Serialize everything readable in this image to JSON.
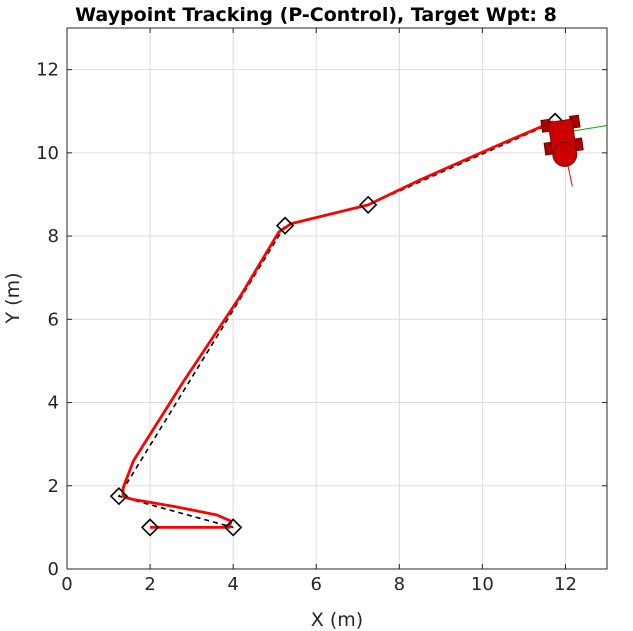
{
  "chart_data": {
    "type": "line",
    "title": "Waypoint Tracking (P-Control), Target Wpt: 8",
    "xlabel": "X (m)",
    "ylabel": "Y (m)",
    "xlim": [
      0,
      13
    ],
    "ylim": [
      0,
      13
    ],
    "xticks": [
      0,
      2,
      4,
      6,
      8,
      10,
      12
    ],
    "yticks": [
      0,
      2,
      4,
      6,
      8,
      10,
      12
    ],
    "grid": true,
    "series": [
      {
        "role": "waypoints",
        "marker": "diamond",
        "color": "#000000",
        "x": [
          2,
          4,
          1.25,
          5.25,
          7.25,
          11.75
        ],
        "y": [
          1,
          1,
          1.75,
          8.25,
          8.75,
          10.75
        ]
      },
      {
        "role": "reference path",
        "style": "dashed",
        "color": "#000000",
        "x": [
          2,
          4,
          1.25,
          5.25,
          7.25,
          11.75
        ],
        "y": [
          1,
          1,
          1.75,
          8.25,
          8.75,
          10.75
        ]
      },
      {
        "role": "robot trajectory",
        "style": "solid",
        "color": "#ff0000",
        "x": [
          2,
          3.9,
          3.95,
          3.6,
          2.6,
          1.55,
          1.35,
          1.35,
          1.6,
          2.8,
          4.2,
          5.1,
          5.4,
          7.25,
          8.5,
          10.3,
          11.7
        ],
        "y": [
          1,
          1,
          1.15,
          1.3,
          1.5,
          1.68,
          1.75,
          1.95,
          2.6,
          4.5,
          6.6,
          8.1,
          8.3,
          8.75,
          9.35,
          10.15,
          10.75
        ]
      }
    ],
    "robot": {
      "x": 11.95,
      "y": 10.2,
      "color": "#cc0000",
      "heading_color": "#ff0000",
      "lookahead_color": "#00aa00"
    }
  }
}
